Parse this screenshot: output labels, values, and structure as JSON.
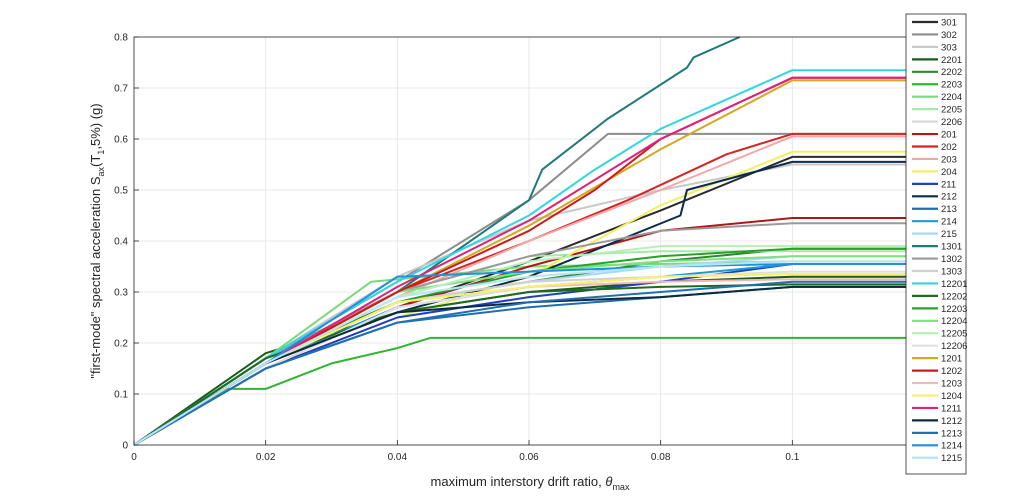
{
  "chart_data": {
    "type": "line",
    "title": "",
    "xlabel_main": "maximum interstory drift ratio, ",
    "xlabel_symbol": "θ",
    "xlabel_sub": "max",
    "ylabel_parts": {
      "a": "\"first-mode\" spectral acceleration S",
      "sub1": "ax",
      "b": "(T",
      "sub2": "1",
      "c": ",5%) (g)"
    },
    "xlim": [
      0,
      0.12
    ],
    "ylim": [
      0,
      0.8
    ],
    "xticks": [
      0,
      0.02,
      0.04,
      0.06,
      0.08,
      0.1
    ],
    "xtick_labels": [
      "0",
      "0.02",
      "0.04",
      "0.06",
      "0.08",
      "0.1"
    ],
    "yticks": [
      0,
      0.1,
      0.2,
      0.3,
      0.4,
      0.5,
      0.6,
      0.7,
      0.8
    ],
    "ytick_labels": [
      "0",
      "0.1",
      "0.2",
      "0.3",
      "0.4",
      "0.5",
      "0.6",
      "0.7",
      "0.8"
    ],
    "grid": true,
    "legend_position": "right",
    "series": [
      {
        "name": "301",
        "color": "#2b2b2b",
        "x": [
          0,
          0.02,
          0.04,
          0.06,
          0.08,
          0.1,
          0.12
        ],
        "y": [
          0,
          0.16,
          0.27,
          0.36,
          0.46,
          0.565,
          0.565
        ]
      },
      {
        "name": "302",
        "color": "#8c8c8c",
        "x": [
          0,
          0.02,
          0.04,
          0.06,
          0.072,
          0.1,
          0.12
        ],
        "y": [
          0,
          0.17,
          0.32,
          0.48,
          0.61,
          0.61,
          0.61
        ]
      },
      {
        "name": "303",
        "color": "#c8c8c8",
        "x": [
          0,
          0.02,
          0.04,
          0.06,
          0.08,
          0.1,
          0.12
        ],
        "y": [
          0,
          0.17,
          0.33,
          0.44,
          0.5,
          0.55,
          0.55
        ]
      },
      {
        "name": "2201",
        "color": "#1a5c1a",
        "x": [
          0,
          0.02,
          0.04,
          0.06,
          0.08,
          0.1,
          0.12
        ],
        "y": [
          0,
          0.18,
          0.26,
          0.3,
          0.32,
          0.33,
          0.33
        ]
      },
      {
        "name": "2202",
        "color": "#2a8a2a",
        "x": [
          0,
          0.02,
          0.04,
          0.06,
          0.08,
          0.1,
          0.12
        ],
        "y": [
          0,
          0.17,
          0.28,
          0.32,
          0.36,
          0.385,
          0.385
        ]
      },
      {
        "name": "2203",
        "color": "#2fb52f",
        "x": [
          0,
          0.014,
          0.02,
          0.03,
          0.04,
          0.045,
          0.1,
          0.12
        ],
        "y": [
          0,
          0.11,
          0.11,
          0.16,
          0.19,
          0.21,
          0.21,
          0.21
        ]
      },
      {
        "name": "2204",
        "color": "#7ad97a",
        "x": [
          0,
          0.02,
          0.036,
          0.06,
          0.1,
          0.12
        ],
        "y": [
          0,
          0.17,
          0.32,
          0.35,
          0.36,
          0.36
        ]
      },
      {
        "name": "2205",
        "color": "#a8e8a8",
        "x": [
          0,
          0.02,
          0.04,
          0.06,
          0.08,
          0.1,
          0.12
        ],
        "y": [
          0,
          0.17,
          0.3,
          0.37,
          0.38,
          0.38,
          0.38
        ]
      },
      {
        "name": "2206",
        "color": "#d9d9d9",
        "x": [
          0,
          0.02,
          0.04,
          0.06,
          0.08,
          0.1,
          0.12
        ],
        "y": [
          0,
          0.16,
          0.29,
          0.33,
          0.35,
          0.355,
          0.355
        ]
      },
      {
        "name": "201",
        "color": "#b01818",
        "x": [
          0,
          0.02,
          0.04,
          0.06,
          0.08,
          0.1,
          0.12
        ],
        "y": [
          0,
          0.15,
          0.27,
          0.35,
          0.42,
          0.445,
          0.445
        ]
      },
      {
        "name": "202",
        "color": "#d42424",
        "x": [
          0,
          0.02,
          0.04,
          0.06,
          0.075,
          0.09,
          0.1,
          0.12
        ],
        "y": [
          0,
          0.16,
          0.3,
          0.4,
          0.48,
          0.57,
          0.61,
          0.61
        ]
      },
      {
        "name": "203",
        "color": "#f2a8a8",
        "x": [
          0,
          0.02,
          0.04,
          0.06,
          0.08,
          0.1,
          0.12
        ],
        "y": [
          0,
          0.16,
          0.29,
          0.4,
          0.5,
          0.605,
          0.605
        ]
      },
      {
        "name": "204",
        "color": "#f0f060",
        "x": [
          0,
          0.02,
          0.04,
          0.06,
          0.08,
          0.1,
          0.12
        ],
        "y": [
          0,
          0.15,
          0.25,
          0.33,
          0.47,
          0.575,
          0.575
        ]
      },
      {
        "name": "211",
        "color": "#1f3fbf",
        "x": [
          0,
          0.02,
          0.04,
          0.06,
          0.08,
          0.1,
          0.12
        ],
        "y": [
          0,
          0.15,
          0.25,
          0.29,
          0.32,
          0.355,
          0.355
        ]
      },
      {
        "name": "212",
        "color": "#0b2b4b",
        "x": [
          0,
          0.02,
          0.04,
          0.06,
          0.083,
          0.084,
          0.1,
          0.12
        ],
        "y": [
          0,
          0.17,
          0.26,
          0.33,
          0.45,
          0.5,
          0.555,
          0.555
        ]
      },
      {
        "name": "213",
        "color": "#1f6faf",
        "x": [
          0,
          0.02,
          0.04,
          0.06,
          0.08,
          0.1,
          0.12
        ],
        "y": [
          0,
          0.15,
          0.24,
          0.27,
          0.29,
          0.31,
          0.31
        ]
      },
      {
        "name": "214",
        "color": "#1a9ad6",
        "x": [
          0,
          0.02,
          0.04,
          0.06,
          0.08,
          0.1,
          0.12
        ],
        "y": [
          0,
          0.16,
          0.27,
          0.31,
          0.33,
          0.355,
          0.355
        ]
      },
      {
        "name": "215",
        "color": "#a8d8f0",
        "x": [
          0,
          0.02,
          0.04,
          0.06,
          0.08,
          0.1,
          0.12
        ],
        "y": [
          0,
          0.16,
          0.28,
          0.32,
          0.35,
          0.37,
          0.37
        ]
      },
      {
        "name": "1301",
        "color": "#1f7a7a",
        "x": [
          0,
          0.02,
          0.04,
          0.06,
          0.062,
          0.072,
          0.084,
          0.085,
          0.092
        ],
        "y": [
          0,
          0.17,
          0.3,
          0.48,
          0.54,
          0.64,
          0.74,
          0.76,
          0.8
        ]
      },
      {
        "name": "1302",
        "color": "#9a9a9a",
        "x": [
          0,
          0.02,
          0.04,
          0.06,
          0.08,
          0.1,
          0.12
        ],
        "y": [
          0,
          0.17,
          0.3,
          0.37,
          0.42,
          0.435,
          0.435
        ]
      },
      {
        "name": "1303",
        "color": "#d0d0d0",
        "x": [
          0,
          0.02,
          0.04,
          0.06,
          0.08,
          0.1,
          0.12
        ],
        "y": [
          0,
          0.16,
          0.28,
          0.32,
          0.33,
          0.335,
          0.335
        ]
      },
      {
        "name": "12201",
        "color": "#33d6e0",
        "x": [
          0,
          0.02,
          0.04,
          0.06,
          0.07,
          0.08,
          0.1,
          0.12
        ],
        "y": [
          0,
          0.17,
          0.32,
          0.45,
          0.54,
          0.62,
          0.735,
          0.735
        ]
      },
      {
        "name": "12202",
        "color": "#1f6b1f",
        "x": [
          0,
          0.02,
          0.04,
          0.06,
          0.08,
          0.1,
          0.12
        ],
        "y": [
          0,
          0.17,
          0.26,
          0.3,
          0.31,
          0.315,
          0.315
        ]
      },
      {
        "name": "12203",
        "color": "#2a9f2a",
        "x": [
          0,
          0.02,
          0.04,
          0.06,
          0.08,
          0.1,
          0.12
        ],
        "y": [
          0,
          0.16,
          0.28,
          0.34,
          0.37,
          0.385,
          0.385
        ]
      },
      {
        "name": "12204",
        "color": "#80e080",
        "x": [
          0,
          0.02,
          0.04,
          0.06,
          0.08,
          0.1,
          0.12
        ],
        "y": [
          0,
          0.16,
          0.3,
          0.34,
          0.36,
          0.37,
          0.37
        ]
      },
      {
        "name": "12205",
        "color": "#b8eeb8",
        "x": [
          0,
          0.02,
          0.04,
          0.06,
          0.08,
          0.1,
          0.12
        ],
        "y": [
          0,
          0.16,
          0.29,
          0.36,
          0.39,
          0.39,
          0.39
        ]
      },
      {
        "name": "12206",
        "color": "#e0e0e0",
        "x": [
          0,
          0.02,
          0.04,
          0.06,
          0.08,
          0.1,
          0.12
        ],
        "y": [
          0,
          0.15,
          0.27,
          0.31,
          0.33,
          0.34,
          0.34
        ]
      },
      {
        "name": "1201",
        "color": "#d4a820",
        "x": [
          0,
          0.02,
          0.04,
          0.06,
          0.08,
          0.1,
          0.12
        ],
        "y": [
          0,
          0.16,
          0.3,
          0.43,
          0.58,
          0.715,
          0.715
        ]
      },
      {
        "name": "1202",
        "color": "#cc1a1a",
        "x": [
          0,
          0.02,
          0.04,
          0.06,
          0.07,
          0.08,
          0.1,
          0.12
        ],
        "y": [
          0,
          0.16,
          0.3,
          0.42,
          0.5,
          0.6,
          0.72,
          0.72
        ]
      },
      {
        "name": "1203",
        "color": "#f0b8b8",
        "x": [
          0,
          0.02,
          0.04,
          0.06,
          0.08,
          0.1,
          0.12
        ],
        "y": [
          0,
          0.16,
          0.28,
          0.31,
          0.32,
          0.325,
          0.325
        ]
      },
      {
        "name": "1204",
        "color": "#f8f070",
        "x": [
          0,
          0.02,
          0.04,
          0.06,
          0.08,
          0.1,
          0.12
        ],
        "y": [
          0,
          0.16,
          0.28,
          0.31,
          0.33,
          0.335,
          0.335
        ]
      },
      {
        "name": "1211",
        "color": "#e0207a",
        "x": [
          0,
          0.02,
          0.04,
          0.06,
          0.08,
          0.1,
          0.12
        ],
        "y": [
          0,
          0.16,
          0.31,
          0.44,
          0.6,
          0.72,
          0.72
        ]
      },
      {
        "name": "1212",
        "color": "#0b2b40",
        "x": [
          0,
          0.02,
          0.04,
          0.06,
          0.08,
          0.1,
          0.12
        ],
        "y": [
          0,
          0.16,
          0.26,
          0.28,
          0.29,
          0.31,
          0.31
        ]
      },
      {
        "name": "1213",
        "color": "#2070b0",
        "x": [
          0,
          0.02,
          0.04,
          0.06,
          0.08,
          0.1,
          0.12
        ],
        "y": [
          0,
          0.15,
          0.24,
          0.28,
          0.3,
          0.32,
          0.32
        ]
      },
      {
        "name": "1214",
        "color": "#1e90e0",
        "x": [
          0,
          0.02,
          0.04,
          0.06,
          0.08,
          0.1,
          0.12
        ],
        "y": [
          0,
          0.16,
          0.33,
          0.34,
          0.35,
          0.355,
          0.355
        ]
      },
      {
        "name": "1215",
        "color": "#b8e4f8",
        "x": [
          0,
          0.02,
          0.04,
          0.06,
          0.08,
          0.1,
          0.12
        ],
        "y": [
          0,
          0.16,
          0.29,
          0.33,
          0.35,
          0.36,
          0.36
        ]
      }
    ]
  }
}
